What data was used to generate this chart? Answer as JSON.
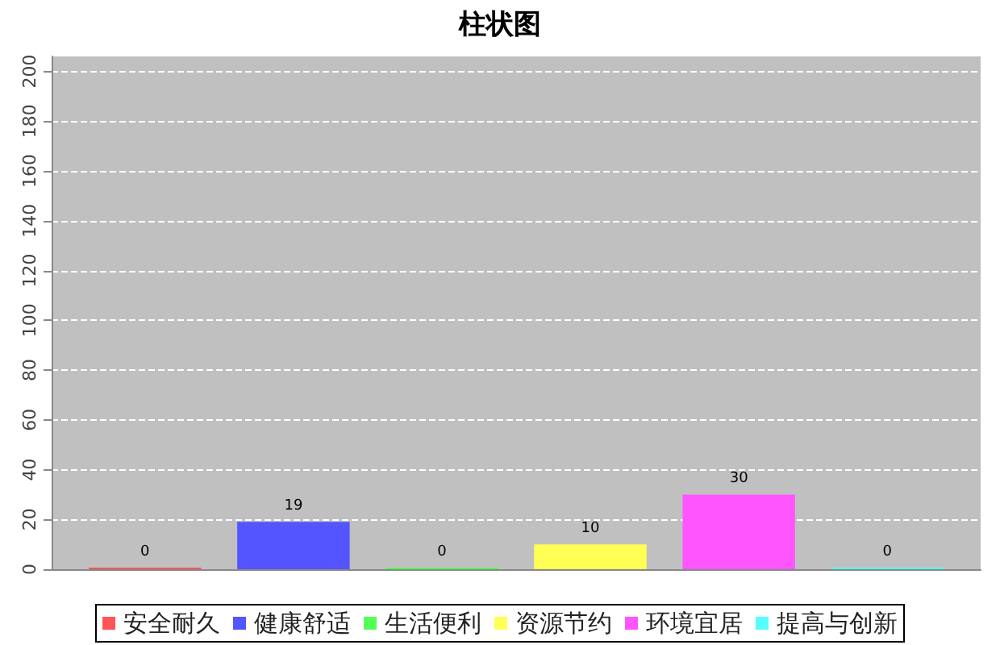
{
  "chart_data": {
    "type": "bar",
    "title": "柱状图",
    "categories": [
      null
    ],
    "series": [
      {
        "name": "安全耐久",
        "color": "#ff5555",
        "values": [
          0
        ]
      },
      {
        "name": "健康舒适",
        "color": "#5555ff",
        "values": [
          19
        ]
      },
      {
        "name": "生活便利",
        "color": "#55ff55",
        "values": [
          0
        ]
      },
      {
        "name": "资源节约",
        "color": "#ffff55",
        "values": [
          10
        ]
      },
      {
        "name": "环境宜居",
        "color": "#ff55ff",
        "values": [
          30
        ]
      },
      {
        "name": "提高与创新",
        "color": "#55ffff",
        "values": [
          0
        ]
      }
    ],
    "ylim": [
      0,
      206
    ],
    "yticks": [
      0,
      20,
      40,
      60,
      80,
      100,
      120,
      140,
      160,
      180,
      200
    ],
    "grid": "y",
    "legend": "bottom",
    "data_labels": true
  }
}
